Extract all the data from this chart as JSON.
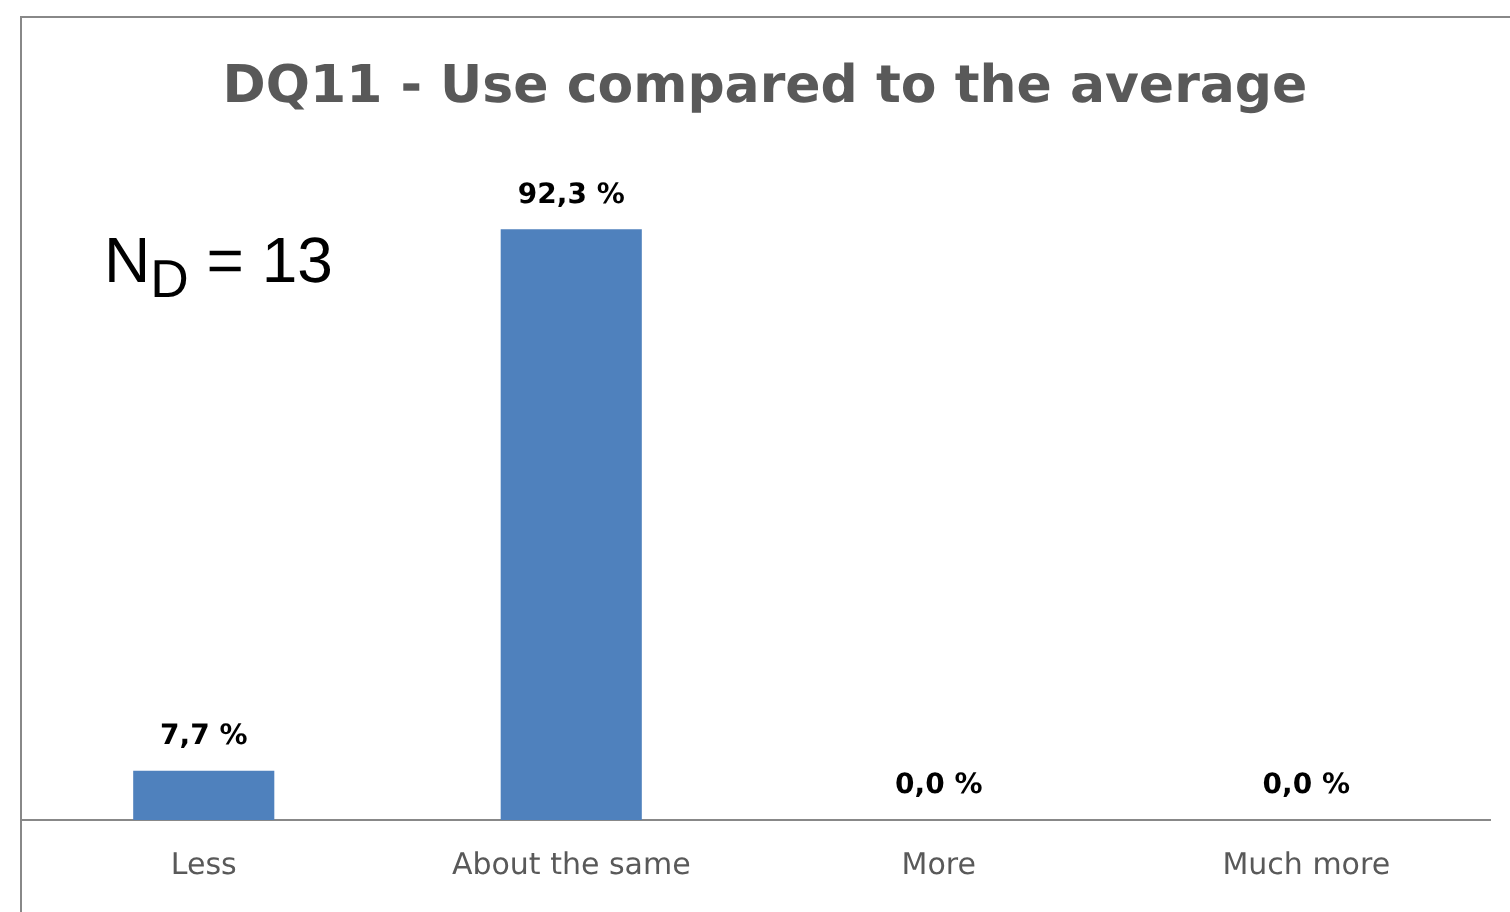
{
  "chart_data": {
    "type": "bar",
    "title": "DQ11 - Use compared to the average",
    "categories": [
      "Less",
      "About the same",
      "More",
      "Much more"
    ],
    "values": [
      7.7,
      92.3,
      0,
      0
    ],
    "value_labels": [
      "7,7 %",
      "92,3 %",
      "0,0 %",
      "0,0 %"
    ],
    "color": "#4f81bd",
    "annotations": [
      "N$_{D}$ = 13"
    ],
    "grid": false,
    "legend": false,
    "tick_labels": "x"
  }
}
